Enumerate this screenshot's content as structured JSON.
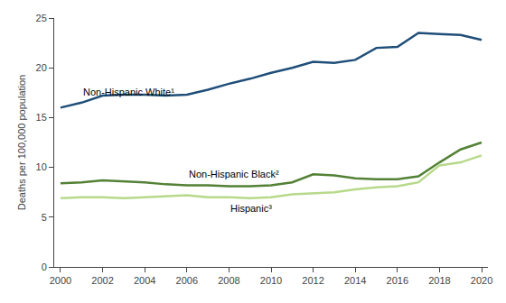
{
  "chart_data": {
    "type": "line",
    "x": [
      2000,
      2001,
      2002,
      2003,
      2004,
      2005,
      2006,
      2007,
      2008,
      2009,
      2010,
      2011,
      2012,
      2013,
      2014,
      2015,
      2016,
      2017,
      2018,
      2019,
      2020
    ],
    "series": [
      {
        "name": "Non-Hispanic White¹",
        "color": "#1f4e79",
        "values": [
          16.0,
          16.5,
          17.2,
          17.3,
          17.3,
          17.2,
          17.3,
          17.8,
          18.4,
          18.9,
          19.5,
          20.0,
          20.6,
          20.5,
          20.8,
          22.0,
          22.1,
          23.5,
          23.4,
          23.3,
          22.8
        ]
      },
      {
        "name": "Non-Hispanic Black²",
        "color": "#538135",
        "values": [
          8.4,
          8.5,
          8.7,
          8.6,
          8.5,
          8.3,
          8.2,
          8.2,
          8.1,
          8.1,
          8.2,
          8.5,
          9.3,
          9.2,
          8.9,
          8.8,
          8.8,
          9.1,
          10.5,
          11.8,
          12.5
        ]
      },
      {
        "name": "Hispanic³",
        "color": "#b7d98a",
        "values": [
          6.9,
          7.0,
          7.0,
          6.9,
          7.0,
          7.1,
          7.2,
          7.0,
          7.0,
          6.9,
          7.0,
          7.3,
          7.4,
          7.5,
          7.8,
          8.0,
          8.1,
          8.5,
          10.2,
          10.5,
          11.2
        ]
      }
    ],
    "ylabel": "Deaths per 100,000 population",
    "xlim": [
      1999.7,
      2020.3
    ],
    "xticks": [
      2000,
      2002,
      2004,
      2006,
      2008,
      2010,
      2012,
      2014,
      2016,
      2018,
      2020
    ],
    "ylim": [
      0,
      25
    ],
    "yticks": [
      0,
      5,
      10,
      15,
      20,
      25
    ],
    "grid": false
  }
}
